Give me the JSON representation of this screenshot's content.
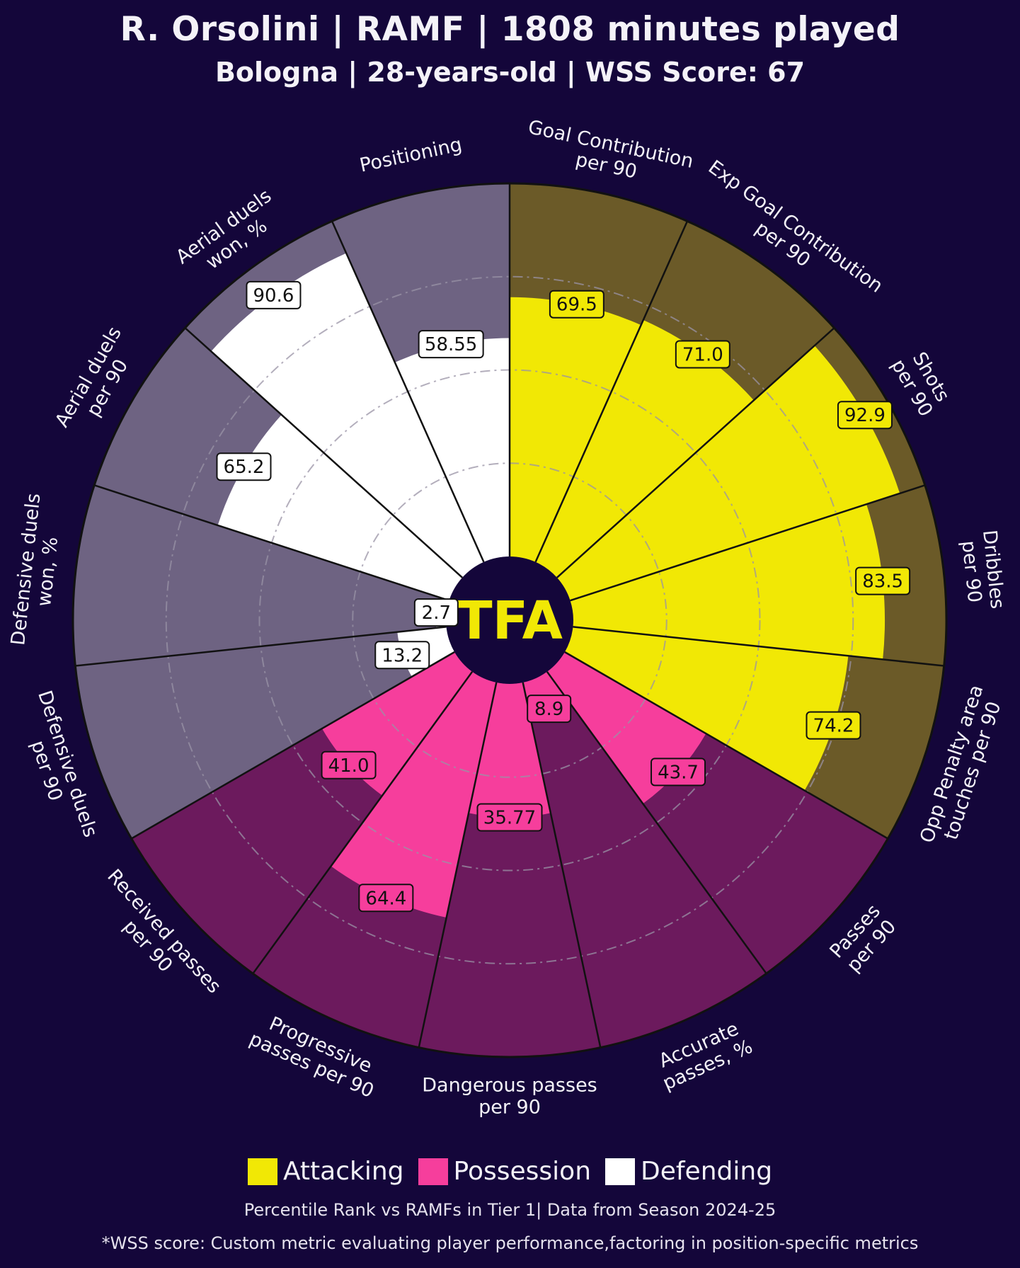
{
  "header": {
    "title": "R. Orsolini | RAMF | 1808 minutes played",
    "subtitle": "Bologna | 28-years-old | WSS Score: 67"
  },
  "logo": {
    "text": "TFA"
  },
  "legend": {
    "attacking": "Attacking",
    "possession": "Possession",
    "defending": "Defending"
  },
  "footer": {
    "note": "Percentile Rank vs RAMFs in Tier 1| Data from Season 2024-25",
    "wss_note": "*WSS score: Custom metric evaluating player performance,factoring in position-specific metrics"
  },
  "colors": {
    "background": "#14063a",
    "attacking": "#f1e805",
    "attacking_bg": "#6b5a28",
    "possession": "#f63e9c",
    "possession_bg": "#6c1a5d",
    "defending": "#ffffff",
    "defending_bg": "#6e6382"
  },
  "chart_data": {
    "type": "pizza",
    "range": [
      0,
      100
    ],
    "categories": [
      "Goal Contribution per 90",
      "Exp Goal Contribution per 90",
      "Shots per 90",
      "Dribbles per 90",
      "Opp Penalty area touches per 90",
      "Passes per 90",
      "Accurate passes, %",
      "Dangerous passes per 90",
      "Progressive passes per 90",
      "Received passes per 90",
      "Defensive duels per 90",
      "Defensive duels won, %",
      "Aerial duels per 90",
      "Aerial duels won, %",
      "Positioning"
    ],
    "labels": [
      [
        "Goal Contribution",
        "per 90"
      ],
      [
        "Exp Goal Contribution",
        "per 90"
      ],
      [
        "Shots",
        "per 90"
      ],
      [
        "Dribbles",
        "per 90"
      ],
      [
        "Opp Penalty area",
        "touches per 90"
      ],
      [
        "Passes",
        "per 90"
      ],
      [
        "Accurate",
        "passes, %"
      ],
      [
        "Dangerous passes",
        "per 90"
      ],
      [
        "Progressive",
        "passes per 90"
      ],
      [
        "Received passes",
        "per 90"
      ],
      [
        "Defensive duels",
        "per 90"
      ],
      [
        "Defensive duels",
        "won, %"
      ],
      [
        "Aerial duels",
        "per 90"
      ],
      [
        "Aerial duels",
        "won, %"
      ],
      [
        "Positioning"
      ]
    ],
    "groups": [
      "attacking",
      "attacking",
      "attacking",
      "attacking",
      "attacking",
      "possession",
      "possession",
      "possession",
      "possession",
      "possession",
      "defending",
      "defending",
      "defending",
      "defending",
      "defending"
    ],
    "values": [
      69.5,
      71.0,
      92.9,
      83.5,
      74.2,
      43.7,
      8.9,
      35.77,
      64.4,
      41.0,
      13.2,
      2.7,
      65.2,
      90.6,
      58.55
    ],
    "value_labels": [
      "69.5",
      "71.0",
      "92.9",
      "83.5",
      "74.2",
      "43.7",
      "8.9",
      "35.77",
      "64.4",
      "41.0",
      "13.2",
      "2.7",
      "65.2",
      "90.6",
      "58.55"
    ],
    "grid": true
  }
}
